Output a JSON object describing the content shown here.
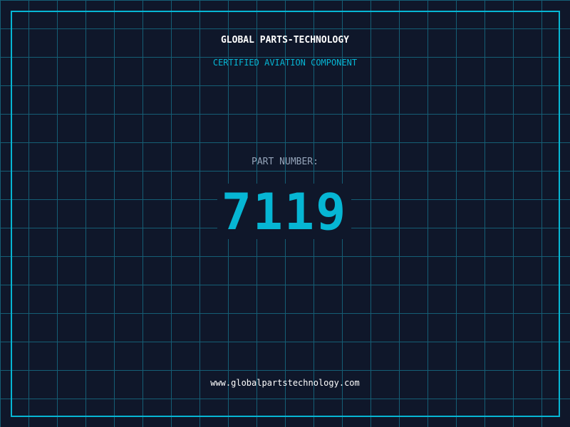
{
  "header": {
    "title": "GLOBAL PARTS-TECHNOLOGY",
    "subtitle": "CERTIFIED AVIATION COMPONENT"
  },
  "part": {
    "label": "PART NUMBER:",
    "number": "7119"
  },
  "footer": {
    "url": "www.globalpartstechnology.com"
  },
  "colors": {
    "background": "#0f172a",
    "accent": "#06b6d4",
    "grid": "#155e75"
  }
}
